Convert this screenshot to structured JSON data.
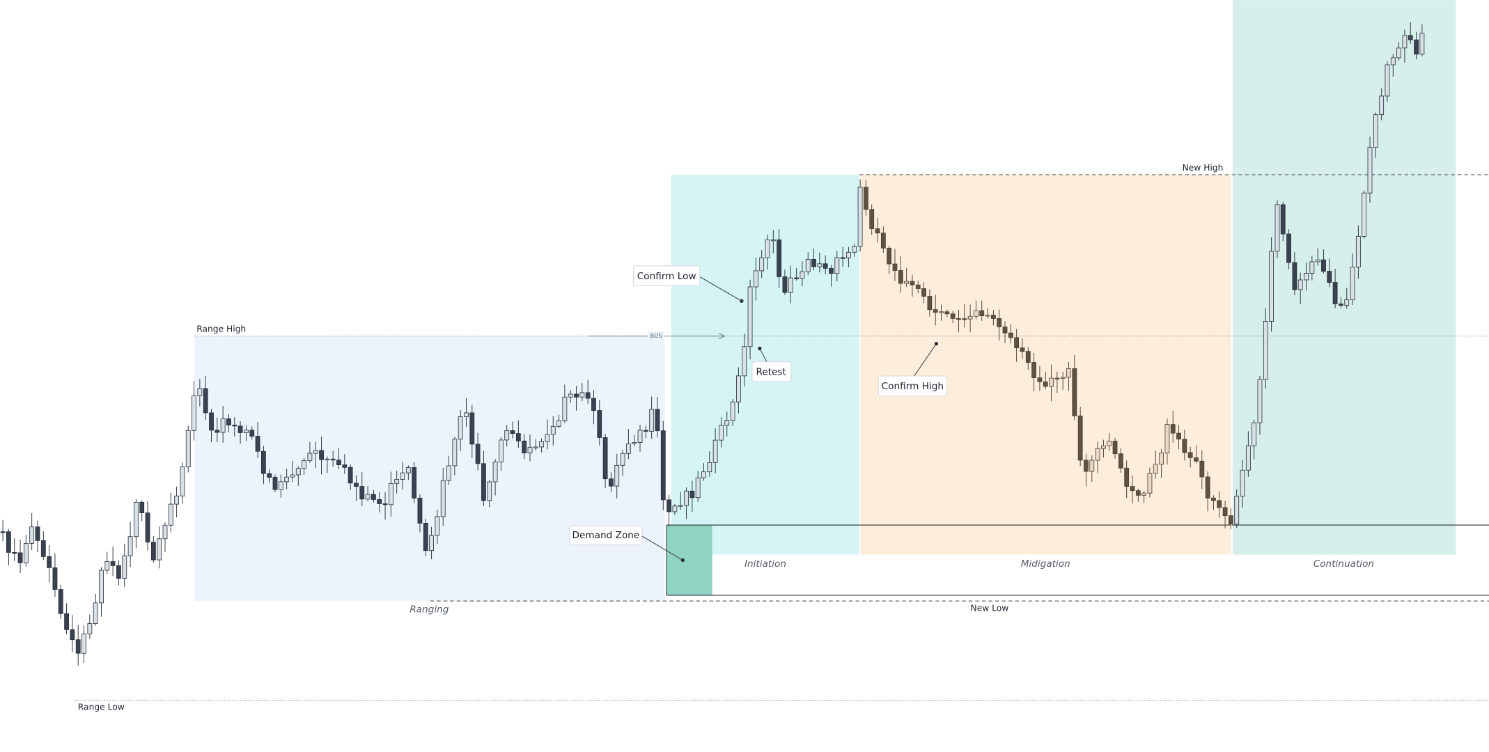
{
  "annotations": {
    "range_high": "Range High",
    "range_low": "Range Low",
    "bos": "BOS",
    "confirm_low": "Confirm Low",
    "retest": "Retest",
    "confirm_high": "Confirm High",
    "demand_zone": "Demand Zone",
    "new_high": "New High",
    "new_low": "New Low"
  },
  "phases": [
    "Ranging",
    "Initiation",
    "Midigation",
    "Continuation"
  ]
}
